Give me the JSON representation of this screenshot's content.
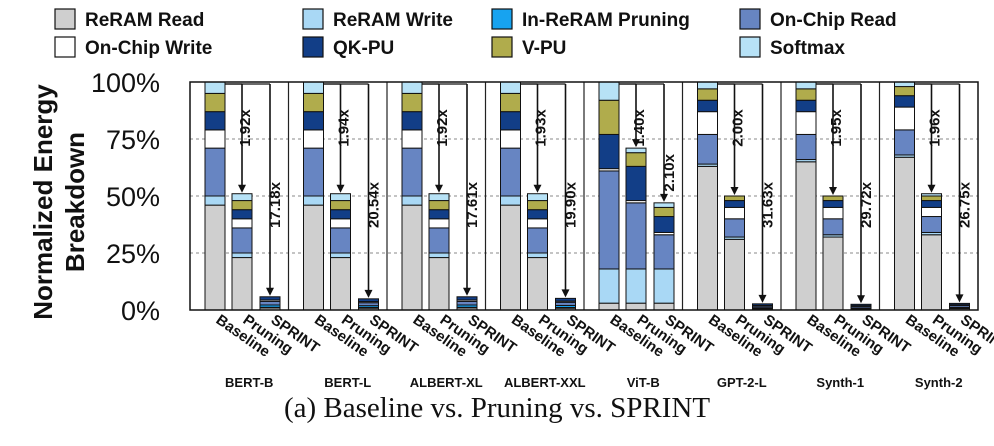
{
  "chart_data": {
    "type": "bar",
    "stacked": true,
    "ylabel": "Normalized Energy Breakdown",
    "y_ticks": [
      "0%",
      "25%",
      "50%",
      "75%",
      "100%"
    ],
    "ylim": [
      0,
      100
    ],
    "grid": "horizontal dashed",
    "legend_position": "top",
    "x_tick_labels": [
      "Baseline",
      "Pruning",
      "SPRINT"
    ],
    "series": [
      {
        "name": "ReRAM Read",
        "color": "#cfcfcf"
      },
      {
        "name": "ReRAM Write",
        "color": "#a9d8f5"
      },
      {
        "name": "In-ReRAM Pruning",
        "color": "#17a3f0"
      },
      {
        "name": "On-Chip Read",
        "color": "#6785c2"
      },
      {
        "name": "On-Chip Write",
        "color": "#ffffff"
      },
      {
        "name": "QK-PU",
        "color": "#123e87"
      },
      {
        "name": "V-PU",
        "color": "#b0ac4c"
      },
      {
        "name": "Softmax",
        "color": "#b7e2f6"
      }
    ],
    "groups": [
      {
        "name": "BERT-B",
        "bars": [
          {
            "values": [
              46,
              4,
              0,
              21,
              8,
              8,
              8,
              5
            ]
          },
          {
            "values": [
              23,
              2,
              0,
              11,
              4,
              4,
              4,
              3
            ]
          },
          {
            "values": [
              0.9,
              0.3,
              1.0,
              1.6,
              0.6,
              1.4,
              0,
              0
            ]
          }
        ],
        "ratios": [
          "1.92x",
          "17.18x"
        ]
      },
      {
        "name": "BERT-L",
        "bars": [
          {
            "values": [
              46,
              4,
              0,
              21,
              8,
              8,
              8,
              5
            ]
          },
          {
            "values": [
              23,
              2,
              0,
              11,
              4,
              4,
              4,
              3
            ]
          },
          {
            "values": [
              0.8,
              0.3,
              0.8,
              1.3,
              0.5,
              1.2,
              0,
              0
            ]
          }
        ],
        "ratios": [
          "1.94x",
          "20.54x"
        ]
      },
      {
        "name": "ALBERT-XL",
        "bars": [
          {
            "values": [
              46,
              4,
              0,
              21,
              8,
              8,
              8,
              5
            ]
          },
          {
            "values": [
              23,
              2,
              0,
              11,
              4,
              4,
              4,
              3
            ]
          },
          {
            "values": [
              0.9,
              0.3,
              1.0,
              1.6,
              0.6,
              1.4,
              0,
              0
            ]
          }
        ],
        "ratios": [
          "1.92x",
          "17.61x"
        ]
      },
      {
        "name": "ALBERT-XXL",
        "bars": [
          {
            "values": [
              46,
              4,
              0,
              21,
              8,
              8,
              8,
              5
            ]
          },
          {
            "values": [
              23,
              2,
              0,
              11,
              4,
              4,
              4,
              3
            ]
          },
          {
            "values": [
              0.8,
              0.3,
              0.9,
              1.4,
              0.5,
              1.2,
              0,
              0
            ]
          }
        ],
        "ratios": [
          "1.93x",
          "19.90x"
        ]
      },
      {
        "name": "ViT-B",
        "bars": [
          {
            "values": [
              3,
              15,
              0,
              43,
              1,
              15,
              15,
              8
            ]
          },
          {
            "values": [
              3,
              15,
              0,
              29,
              1,
              15,
              6,
              2
            ]
          },
          {
            "values": [
              3,
              15,
              0,
              15,
              1,
              7,
              4,
              2
            ]
          }
        ],
        "ratios": [
          "1.40x",
          "2.10x"
        ]
      },
      {
        "name": "GPT-2-L",
        "bars": [
          {
            "values": [
              63,
              1,
              0,
              13,
              10,
              5,
              5,
              3
            ]
          },
          {
            "values": [
              31,
              1,
              0,
              8,
              5,
              3,
              2,
              0
            ]
          },
          {
            "values": [
              0.5,
              0.2,
              0.3,
              0.7,
              0.3,
              0.7,
              0,
              0
            ]
          }
        ],
        "ratios": [
          "2.00x",
          "31.63x"
        ]
      },
      {
        "name": "Synth-1",
        "bars": [
          {
            "values": [
              65,
              1,
              0,
              11,
              10,
              5,
              5,
              3
            ]
          },
          {
            "values": [
              32,
              1,
              0,
              7,
              5,
              3,
              2,
              0
            ]
          },
          {
            "values": [
              0.5,
              0.1,
              0.3,
              0.7,
              0.3,
              0.6,
              0,
              0
            ]
          }
        ],
        "ratios": [
          "1.95x",
          "29.72x"
        ]
      },
      {
        "name": "Synth-2",
        "bars": [
          {
            "values": [
              67,
              1,
              0,
              11,
              10,
              5,
              4,
              2
            ]
          },
          {
            "values": [
              33,
              1,
              0,
              7,
              4,
              3,
              2,
              1
            ]
          },
          {
            "values": [
              0.6,
              0.2,
              0.4,
              0.8,
              0.3,
              0.6,
              0,
              0
            ]
          }
        ],
        "ratios": [
          "1.96x",
          "26.75x"
        ]
      }
    ]
  },
  "caption": "(a) Baseline vs. Pruning vs. SPRINT"
}
